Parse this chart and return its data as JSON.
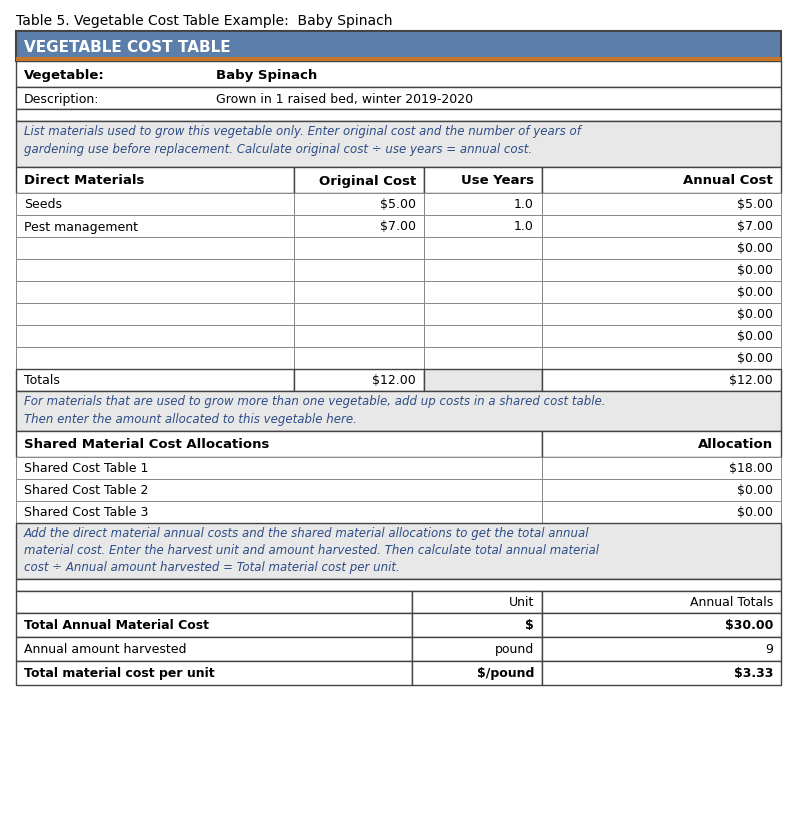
{
  "title": "Table 5. Vegetable Cost Table Example:  Baby Spinach",
  "header_title": "VEGETABLE COST TABLE",
  "header_bg": "#5b7faa",
  "header_border": "#c8762a",
  "vegetable_label": "Vegetable:",
  "vegetable_value": "Baby Spinach",
  "description_label": "Description:",
  "description_value": "Grown in 1 raised bed, winter 2019-2020",
  "instruction1_lines": [
    "List materials used to grow this vegetable only. Enter original cost and the number of years of",
    "gardening use before replacement. Calculate original cost ÷ use years = annual cost."
  ],
  "col_headers": [
    "Direct Materials",
    "Original Cost",
    "Use Years",
    "Annual Cost"
  ],
  "data_rows": [
    [
      "Seeds",
      "$5.00",
      "1.0",
      "$5.00"
    ],
    [
      "Pest management",
      "$7.00",
      "1.0",
      "$7.00"
    ],
    [
      "",
      "",
      "",
      "$0.00"
    ],
    [
      "",
      "",
      "",
      "$0.00"
    ],
    [
      "",
      "",
      "",
      "$0.00"
    ],
    [
      "",
      "",
      "",
      "$0.00"
    ],
    [
      "",
      "",
      "",
      "$0.00"
    ],
    [
      "",
      "",
      "",
      "$0.00"
    ]
  ],
  "totals_row": [
    "Totals",
    "$12.00",
    "",
    "$12.00"
  ],
  "instruction2_lines": [
    "For materials that are used to grow more than one vegetable, add up costs in a shared cost table.",
    "Then enter the amount allocated to this vegetable here."
  ],
  "shared_col_headers": [
    "Shared Material Cost Allocations",
    "Allocation"
  ],
  "shared_rows": [
    [
      "Shared Cost Table 1",
      "$18.00"
    ],
    [
      "Shared Cost Table 2",
      "$0.00"
    ],
    [
      "Shared Cost Table 3",
      "$0.00"
    ]
  ],
  "instruction3_lines": [
    "Add the direct material annual costs and the shared material allocations to get the total annual",
    "material cost. Enter the harvest unit and amount harvested. Then calculate total annual material",
    "cost ÷ Annual amount harvested = Total material cost per unit."
  ],
  "summary_header": [
    "",
    "Unit",
    "Annual Totals"
  ],
  "summary_rows": [
    [
      "Total Annual Material Cost",
      "$",
      "$30.00",
      "bold"
    ],
    [
      "Annual amount harvested",
      "pound",
      "9",
      "normal"
    ],
    [
      "Total material cost per unit",
      "$/pound",
      "$3.33",
      "bold"
    ]
  ],
  "bg_gray": "#e8e8e8",
  "bg_white": "#ffffff",
  "text_blue": "#2e4d87",
  "border_dark": "#444444",
  "border_light": "#888888"
}
